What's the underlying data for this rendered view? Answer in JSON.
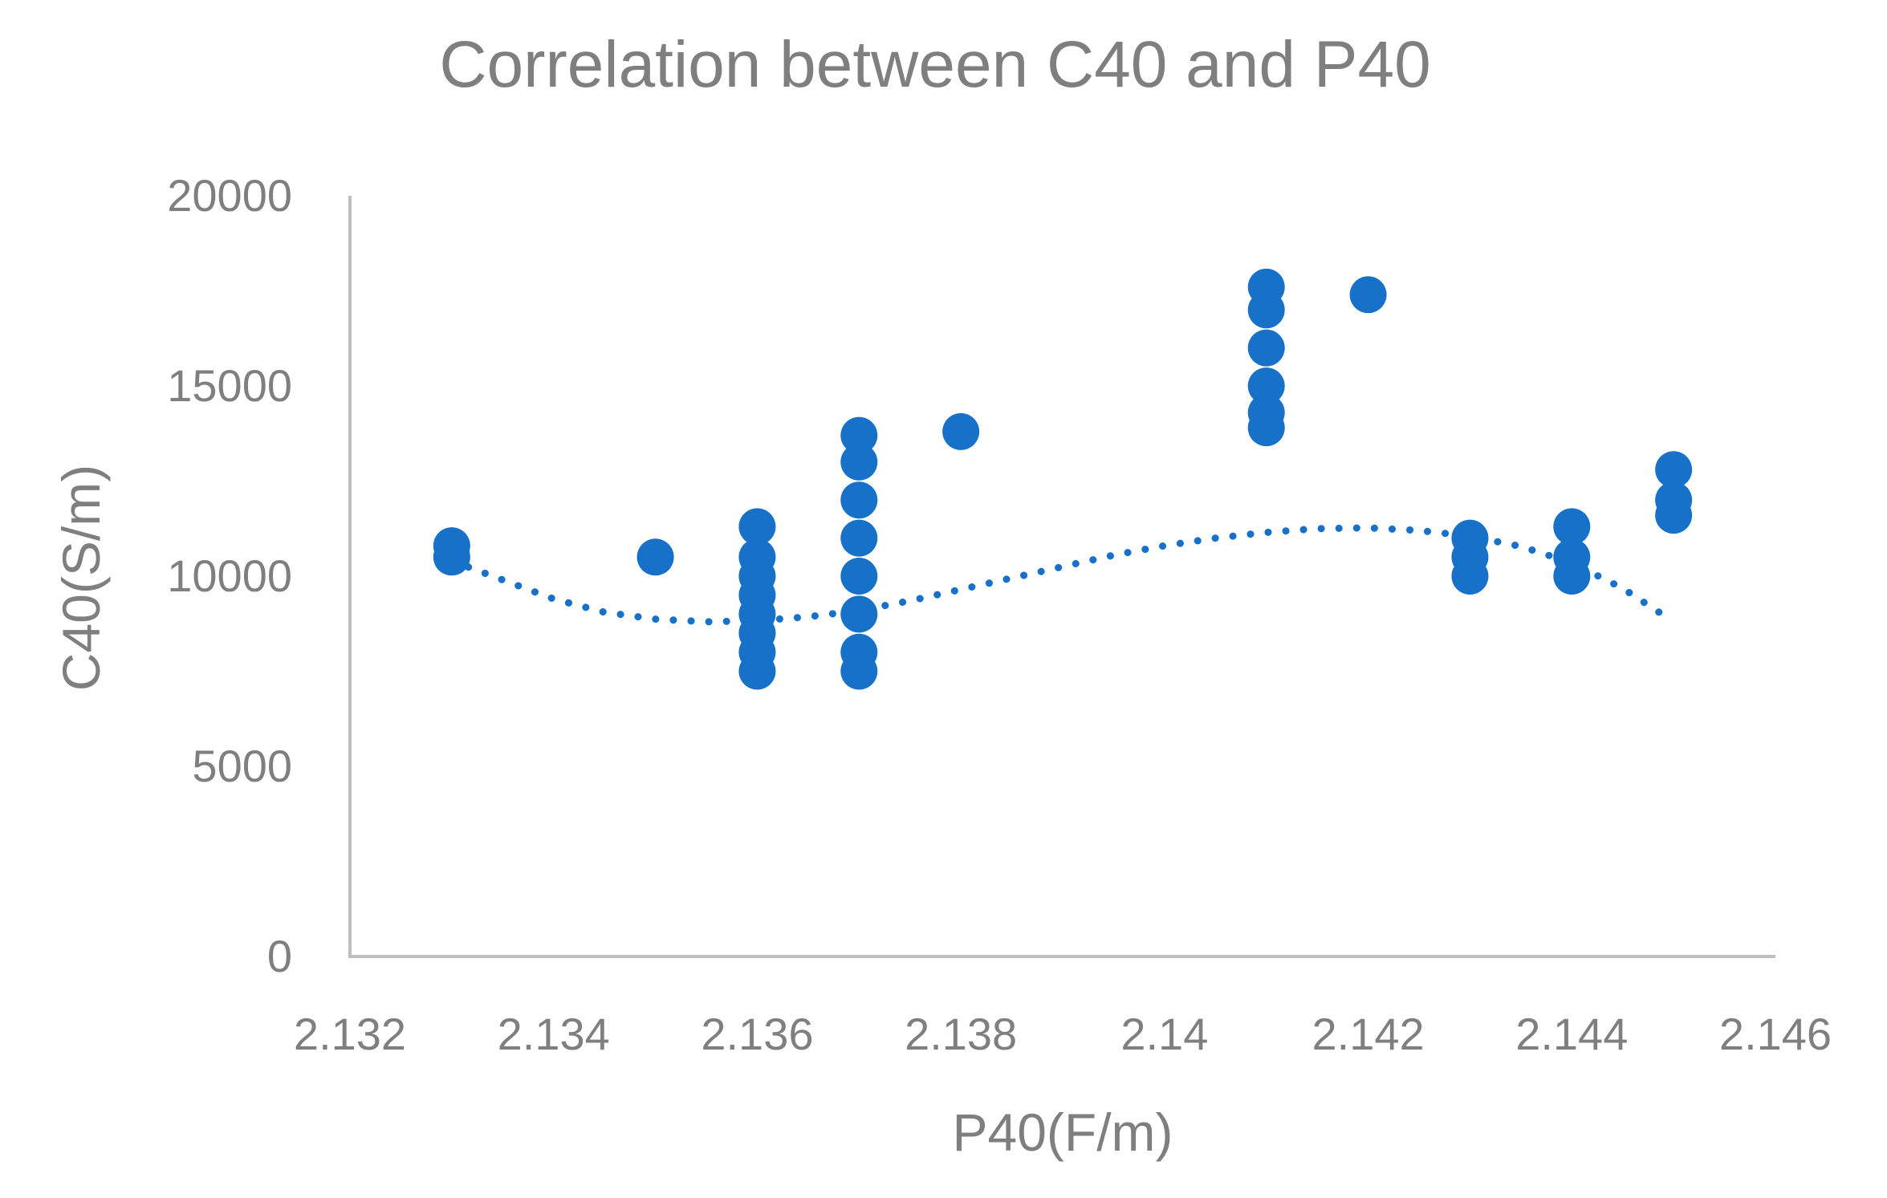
{
  "chart_data": {
    "type": "scatter",
    "title": "Correlation between C40 and P40",
    "xlabel": "P40(F/m)",
    "ylabel": "C40(S/m)",
    "xlim": [
      2.132,
      2.146
    ],
    "ylim": [
      0,
      20000
    ],
    "xticks": [
      "2.132",
      "2.134",
      "2.136",
      "2.138",
      "2.14",
      "2.142",
      "2.144",
      "2.146"
    ],
    "yticks": [
      "0",
      "5000",
      "10000",
      "15000",
      "20000"
    ],
    "grid": false,
    "legend": "none",
    "colors": {
      "points": "#1871c9",
      "trendline": "#1871c9",
      "axis": "#bfbfbf",
      "text": "#7f7f7f"
    },
    "series": [
      {
        "name": "C40",
        "points": [
          {
            "x": 2.133,
            "y": 10500
          },
          {
            "x": 2.133,
            "y": 10800
          },
          {
            "x": 2.135,
            "y": 10500
          },
          {
            "x": 2.136,
            "y": 11300
          },
          {
            "x": 2.136,
            "y": 10500
          },
          {
            "x": 2.136,
            "y": 10000
          },
          {
            "x": 2.136,
            "y": 9500
          },
          {
            "x": 2.136,
            "y": 9000
          },
          {
            "x": 2.136,
            "y": 8500
          },
          {
            "x": 2.136,
            "y": 8000
          },
          {
            "x": 2.136,
            "y": 7500
          },
          {
            "x": 2.137,
            "y": 13700
          },
          {
            "x": 2.137,
            "y": 13000
          },
          {
            "x": 2.137,
            "y": 12000
          },
          {
            "x": 2.137,
            "y": 11000
          },
          {
            "x": 2.137,
            "y": 10000
          },
          {
            "x": 2.137,
            "y": 9000
          },
          {
            "x": 2.137,
            "y": 8000
          },
          {
            "x": 2.137,
            "y": 7500
          },
          {
            "x": 2.138,
            "y": 13800
          },
          {
            "x": 2.141,
            "y": 17600
          },
          {
            "x": 2.141,
            "y": 17000
          },
          {
            "x": 2.141,
            "y": 16000
          },
          {
            "x": 2.141,
            "y": 15000
          },
          {
            "x": 2.141,
            "y": 14300
          },
          {
            "x": 2.141,
            "y": 13900
          },
          {
            "x": 2.142,
            "y": 17400
          },
          {
            "x": 2.143,
            "y": 11000
          },
          {
            "x": 2.143,
            "y": 10500
          },
          {
            "x": 2.143,
            "y": 10000
          },
          {
            "x": 2.144,
            "y": 11300
          },
          {
            "x": 2.144,
            "y": 10500
          },
          {
            "x": 2.144,
            "y": 10000
          },
          {
            "x": 2.145,
            "y": 12800
          },
          {
            "x": 2.145,
            "y": 12000
          },
          {
            "x": 2.145,
            "y": 11600
          }
        ]
      }
    ],
    "trendline": {
      "style": "dotted",
      "type": "polynomial",
      "points": [
        {
          "x": 2.133,
          "y": 10400
        },
        {
          "x": 2.1335,
          "y": 9900
        },
        {
          "x": 2.134,
          "y": 9400
        },
        {
          "x": 2.1345,
          "y": 9050
        },
        {
          "x": 2.135,
          "y": 8870
        },
        {
          "x": 2.1355,
          "y": 8800
        },
        {
          "x": 2.136,
          "y": 8830
        },
        {
          "x": 2.1365,
          "y": 8930
        },
        {
          "x": 2.137,
          "y": 9100
        },
        {
          "x": 2.1375,
          "y": 9350
        },
        {
          "x": 2.138,
          "y": 9650
        },
        {
          "x": 2.1385,
          "y": 9950
        },
        {
          "x": 2.139,
          "y": 10250
        },
        {
          "x": 2.1395,
          "y": 10550
        },
        {
          "x": 2.14,
          "y": 10800
        },
        {
          "x": 2.1405,
          "y": 11000
        },
        {
          "x": 2.141,
          "y": 11150
        },
        {
          "x": 2.1415,
          "y": 11250
        },
        {
          "x": 2.142,
          "y": 11270
        },
        {
          "x": 2.1425,
          "y": 11200
        },
        {
          "x": 2.143,
          "y": 11050
        },
        {
          "x": 2.1435,
          "y": 10780
        },
        {
          "x": 2.144,
          "y": 10350
        },
        {
          "x": 2.1445,
          "y": 9680
        },
        {
          "x": 2.145,
          "y": 8800
        }
      ]
    }
  }
}
